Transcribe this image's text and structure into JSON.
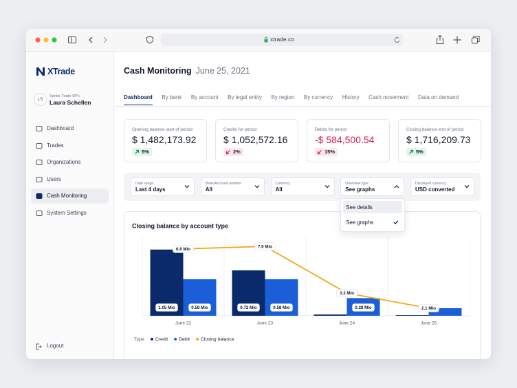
{
  "browser": {
    "url": "xtrade.co"
  },
  "sidebar": {
    "brand": "XTrade",
    "user": {
      "initials": "LS",
      "role": "Senior Trade OPs",
      "name": "Laura Schellen"
    },
    "nav": [
      "Dashboard",
      "Trades",
      "Organizations",
      "Users",
      "Cash Monitoring",
      "System Settings"
    ],
    "active": 4,
    "logout": "Logout"
  },
  "header": {
    "title": "Cash Monitoring",
    "date": "June 25, 2021"
  },
  "tabs": {
    "items": [
      "Dashboard",
      "By bank",
      "By account",
      "By legal entity",
      "By region",
      "By currency",
      "History",
      "Cash movement",
      "Data on demand"
    ],
    "active": 0
  },
  "kpis": [
    {
      "label": "Opening balance start of period",
      "value": "$ 1,482,173.92",
      "change": "5%",
      "trend": "up",
      "color": "#111827"
    },
    {
      "label": "Credits for period",
      "value": "$ 1,052,572.16",
      "change": "2%",
      "trend": "down",
      "color": "#111827"
    },
    {
      "label": "Debits for period",
      "value": "-$ 584,500.54",
      "change": "15%",
      "trend": "down",
      "color": "#d31f4f"
    },
    {
      "label": "Closing balance end of period",
      "value": "$ 1,716,209.73",
      "change": "5%",
      "trend": "up",
      "color": "#111827"
    }
  ],
  "filters": {
    "fields": [
      {
        "label": "Date range",
        "value": "Last 4 days"
      },
      {
        "label": "Bank/Account number",
        "value": "All"
      },
      {
        "label": "Currency",
        "value": "All"
      },
      {
        "label": "Overview type",
        "value": "See graphs"
      },
      {
        "label": "Displayed currency",
        "value": "USD converted"
      }
    ],
    "open": 3,
    "options": [
      "See details",
      "See graphs"
    ],
    "selected": 1,
    "hovered": 0
  },
  "chart_data": {
    "type": "bar",
    "title": "Closing balance by account type",
    "categories": [
      "June 22",
      "June 23",
      "June 24",
      "June 25"
    ],
    "legend_title": "Type",
    "series": [
      {
        "name": "Credit",
        "color": "#0b2a6b",
        "values": [
          1.05,
          0.72,
          0.02,
          0.01
        ],
        "value_labels": [
          "1.05 Mio",
          "0.72 Mio",
          null,
          null
        ]
      },
      {
        "name": "Debit",
        "color": "#1b5fd8",
        "values": [
          0.58,
          0.58,
          0.28,
          0.12
        ],
        "value_labels": [
          "0.58 Mio",
          "0.58 Mio",
          "0.28 Mio",
          null
        ]
      },
      {
        "name": "Closing balance",
        "color": "#f5a511",
        "type": "line",
        "axis": "y2",
        "values": [
          6.8,
          7.0,
          3.3,
          2.1
        ],
        "value_labels": [
          "6.8 Mio",
          "7.0 Mio",
          "3.3 Mio",
          "2.1 Mio"
        ]
      }
    ],
    "ylim": [
      0,
      1.2
    ],
    "y2lim": [
      1.5,
      7.5
    ]
  }
}
